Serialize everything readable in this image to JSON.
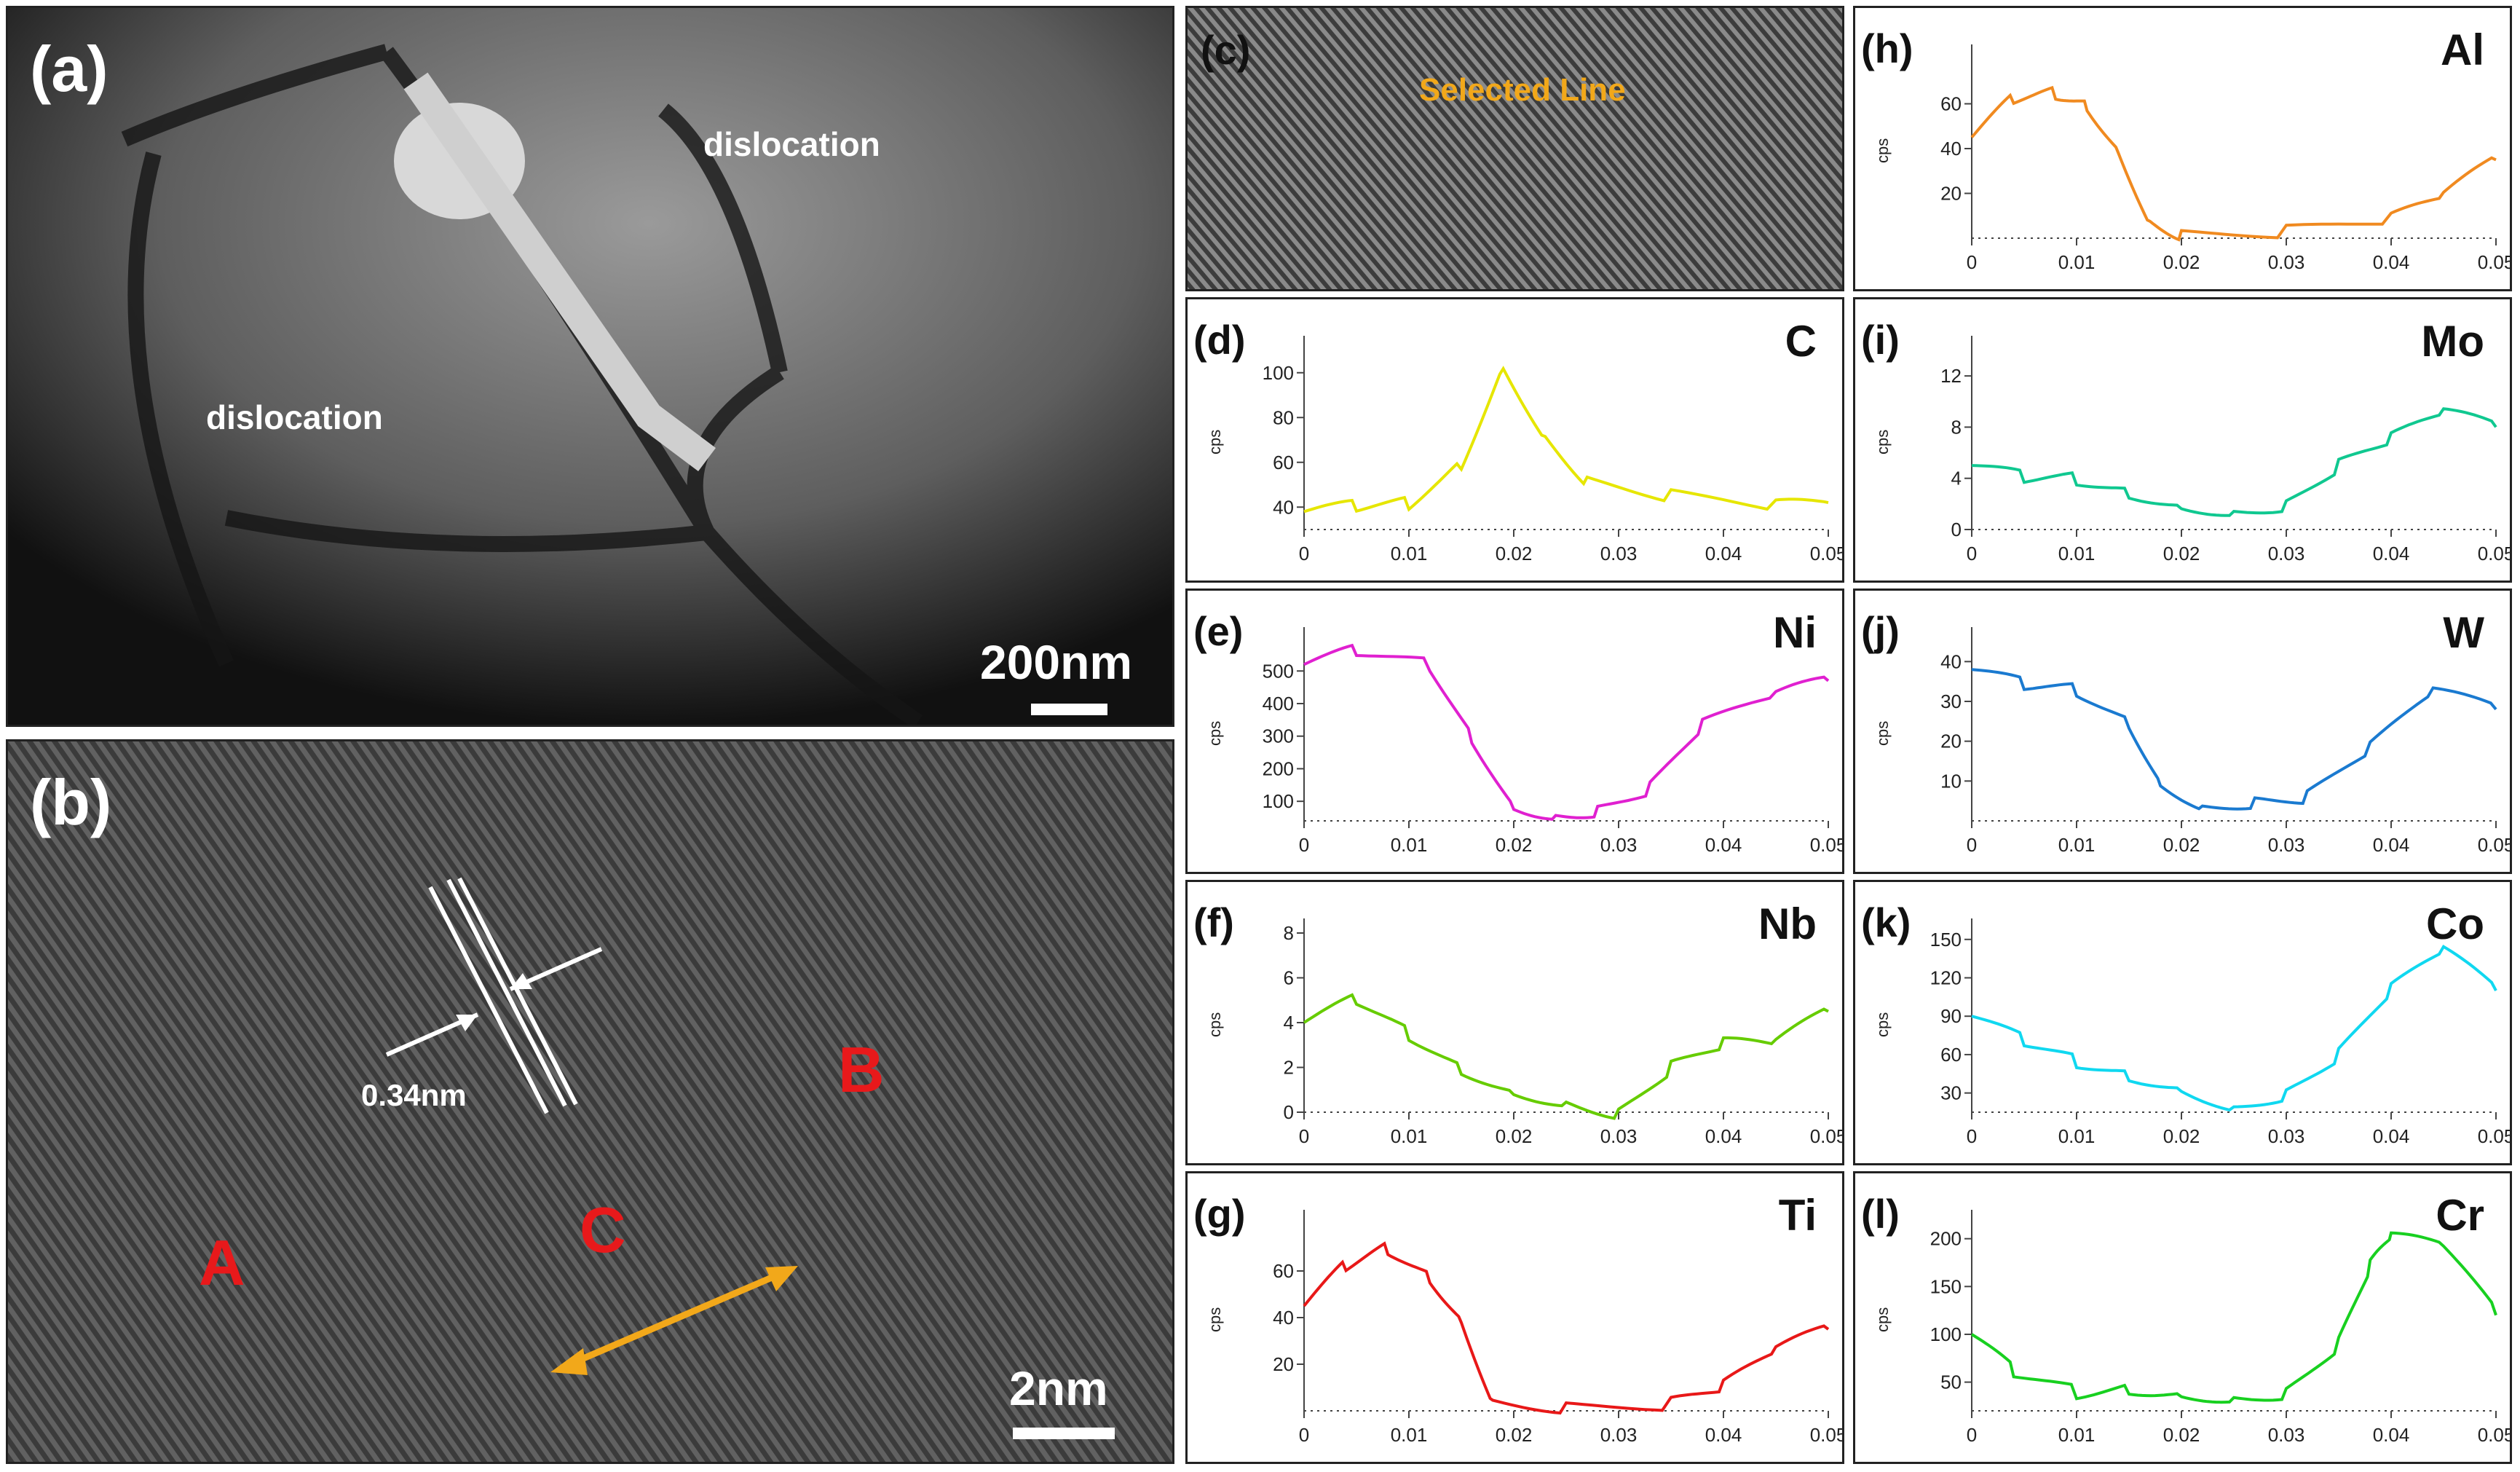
{
  "panel_a": {
    "label": "(a)",
    "annotations": [
      "dislocation",
      "dislocation"
    ],
    "scale": "200nm"
  },
  "panel_b": {
    "label": "(b)",
    "spacing": "0.34nm",
    "regions": [
      "A",
      "B",
      "C"
    ],
    "scale": "2nm"
  },
  "panel_c": {
    "label": "(c)",
    "line_label": "Selected Line"
  },
  "axis": {
    "ylabel": "cps"
  },
  "chart_data": [
    {
      "id": "d",
      "label": "(d)",
      "element": "C",
      "color": "#e6e600",
      "type": "line",
      "x_ticks": [
        "0",
        "0.01",
        "0.02",
        "0.03",
        "0.04",
        "0.05"
      ],
      "y_ticks": [
        "40",
        "60",
        "80",
        "100"
      ],
      "ylim": [
        30,
        110
      ],
      "x": [
        0,
        0.005,
        0.01,
        0.015,
        0.019,
        0.023,
        0.027,
        0.035,
        0.045,
        0.05
      ],
      "values": [
        38,
        40,
        42,
        60,
        104,
        72,
        52,
        45,
        40,
        42
      ]
    },
    {
      "id": "e",
      "label": "(e)",
      "element": "Ni",
      "color": "#e020d0",
      "type": "line",
      "x_ticks": [
        "0",
        "0.01",
        "0.02",
        "0.03",
        "0.04",
        "0.05"
      ],
      "y_ticks": [
        "100",
        "200",
        "300",
        "400",
        "500"
      ],
      "ylim": [
        40,
        590
      ],
      "x": [
        0,
        0.005,
        0.012,
        0.016,
        0.02,
        0.024,
        0.028,
        0.033,
        0.038,
        0.045,
        0.05
      ],
      "values": [
        520,
        560,
        520,
        300,
        90,
        60,
        75,
        140,
        330,
        420,
        470
      ]
    },
    {
      "id": "f",
      "label": "(f)",
      "element": "Nb",
      "color": "#66cc00",
      "type": "line",
      "x_ticks": [
        "0",
        "0.01",
        "0.02",
        "0.03",
        "0.04",
        "0.05"
      ],
      "y_ticks": [
        "0",
        "2",
        "4",
        "6",
        "8"
      ],
      "ylim": [
        0,
        8
      ],
      "x": [
        0,
        0.005,
        0.01,
        0.015,
        0.02,
        0.025,
        0.03,
        0.035,
        0.04,
        0.045,
        0.05
      ],
      "values": [
        4,
        5,
        3.5,
        2,
        1,
        0.5,
        0,
        2,
        3,
        3,
        4.5
      ]
    },
    {
      "id": "g",
      "label": "(g)",
      "element": "Ti",
      "color": "#e81818",
      "type": "line",
      "x_ticks": [
        "0",
        "0.01",
        "0.02",
        "0.03",
        "0.04",
        "0.05"
      ],
      "y_ticks": [
        "20",
        "40",
        "60"
      ],
      "ylim": [
        0,
        80
      ],
      "x": [
        0,
        0.004,
        0.008,
        0.012,
        0.015,
        0.018,
        0.025,
        0.035,
        0.04,
        0.045,
        0.05
      ],
      "values": [
        45,
        62,
        70,
        58,
        40,
        5,
        2,
        3,
        10,
        25,
        35
      ]
    },
    {
      "id": "h",
      "label": "(h)",
      "element": "Al",
      "color": "#f08a20",
      "type": "line",
      "x_ticks": [
        "0",
        "0.01",
        "0.02",
        "0.03",
        "0.04",
        "0.05"
      ],
      "y_ticks": [
        "20",
        "40",
        "60"
      ],
      "ylim": [
        0,
        80
      ],
      "x": [
        0,
        0.004,
        0.008,
        0.011,
        0.014,
        0.017,
        0.02,
        0.03,
        0.04,
        0.045,
        0.05
      ],
      "values": [
        45,
        62,
        65,
        60,
        40,
        8,
        2,
        3,
        8,
        18,
        35
      ]
    },
    {
      "id": "i",
      "label": "(i)",
      "element": "Mo",
      "color": "#10c890",
      "type": "line",
      "x_ticks": [
        "0",
        "0.01",
        "0.02",
        "0.03",
        "0.04",
        "0.05"
      ],
      "y_ticks": [
        "0",
        "4",
        "8",
        "12"
      ],
      "ylim": [
        0,
        14
      ],
      "x": [
        0,
        0.005,
        0.01,
        0.015,
        0.02,
        0.025,
        0.03,
        0.035,
        0.04,
        0.045,
        0.05
      ],
      "values": [
        5,
        4,
        4,
        3,
        2,
        1.5,
        2,
        5,
        7,
        9,
        8
      ]
    },
    {
      "id": "j",
      "label": "(j)",
      "element": "W",
      "color": "#1a7ad0",
      "type": "line",
      "x_ticks": [
        "0",
        "0.01",
        "0.02",
        "0.03",
        "0.04",
        "0.05"
      ],
      "y_ticks": [
        "10",
        "20",
        "30",
        "40"
      ],
      "ylim": [
        0,
        45
      ],
      "x": [
        0,
        0.005,
        0.01,
        0.015,
        0.018,
        0.022,
        0.027,
        0.032,
        0.038,
        0.044,
        0.05
      ],
      "values": [
        38,
        34,
        33,
        25,
        10,
        4,
        5,
        6,
        18,
        32,
        28
      ]
    },
    {
      "id": "k",
      "label": "(k)",
      "element": "Co",
      "color": "#10d8f0",
      "type": "line",
      "x_ticks": [
        "0",
        "0.01",
        "0.02",
        "0.03",
        "0.04",
        "0.05"
      ],
      "y_ticks": [
        "30",
        "60",
        "90",
        "120",
        "150"
      ],
      "ylim": [
        15,
        155
      ],
      "x": [
        0,
        0.005,
        0.01,
        0.015,
        0.02,
        0.025,
        0.03,
        0.035,
        0.04,
        0.045,
        0.05
      ],
      "values": [
        90,
        70,
        55,
        45,
        35,
        20,
        30,
        60,
        110,
        140,
        110
      ]
    },
    {
      "id": "l",
      "label": "(l)",
      "element": "Cr",
      "color": "#18d020",
      "type": "line",
      "x_ticks": [
        "0",
        "0.01",
        "0.02",
        "0.03",
        "0.04",
        "0.05"
      ],
      "y_ticks": [
        "50",
        "100",
        "150",
        "200"
      ],
      "ylim": [
        20,
        215
      ],
      "x": [
        0,
        0.004,
        0.01,
        0.015,
        0.02,
        0.025,
        0.03,
        0.035,
        0.038,
        0.04,
        0.045,
        0.05
      ],
      "values": [
        100,
        60,
        40,
        45,
        40,
        35,
        40,
        90,
        170,
        200,
        190,
        120
      ]
    }
  ]
}
